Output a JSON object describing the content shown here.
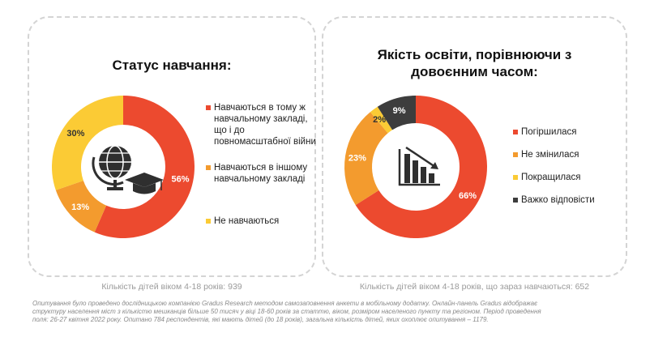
{
  "chart_data": [
    {
      "type": "pie",
      "title": "Статус  навчання:",
      "categories": [
        "Навчаються в тому ж навчальному закладі, що і до повномасштабної війни",
        "Навчаються в іншому навчальному закладі",
        "Не навчаються"
      ],
      "values": [
        56,
        13,
        30
      ],
      "value_labels": [
        "56%",
        "13%",
        "30%"
      ],
      "colors": [
        "#ec4a2f",
        "#f39b2e",
        "#fbcb35"
      ],
      "legend_position": "right",
      "caption": "Кількість дітей віком 4-18 років: 939"
    },
    {
      "type": "pie",
      "title": "Якість освіти, порівнюючи з довоєнним часом:",
      "categories": [
        "Погіршилася",
        "Не змінилася",
        "Покращилася",
        "Важко відповісти"
      ],
      "values": [
        66,
        23,
        2,
        9
      ],
      "value_labels": [
        "66%",
        "23%",
        "2%",
        "9%"
      ],
      "colors": [
        "#ec4a2f",
        "#f39b2e",
        "#fbcb35",
        "#3d3d3d"
      ],
      "legend_position": "right",
      "caption": "Кількість дітей віком 4-18 років, що зараз навчаються: 652"
    }
  ],
  "icons": {
    "left_center": "globe-graduation-cap-icon",
    "right_center": "declining-bar-chart-icon"
  },
  "footnote": "Опитування було проведено дослідницькою компанією Gradus Research методом самозаповнення анкети в мобільному додатку. Онлайн-панель Gradus відображає структуру населення міст з кількістю мешканців більше 50 тисяч у віці 18-60 років за статтю, віком, розміром населеного пункту та регіоном. Період проведення поля: 26-27 квітня 2022 року. Опитано 784 респондентів, які мають дітей (до 18 років), загальна кількість дітей, яких охоплює опитування – 1179."
}
